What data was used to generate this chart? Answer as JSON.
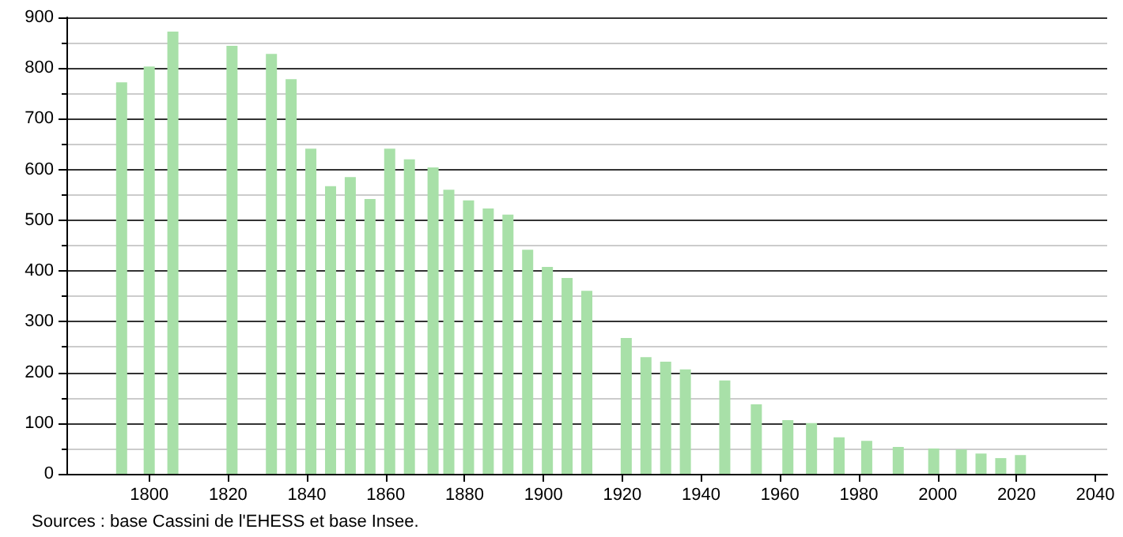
{
  "chart_data": {
    "type": "bar",
    "x": [
      1793,
      1800,
      1806,
      1821,
      1831,
      1836,
      1841,
      1846,
      1851,
      1856,
      1861,
      1866,
      1872,
      1876,
      1881,
      1886,
      1891,
      1896,
      1901,
      1906,
      1911,
      1921,
      1926,
      1931,
      1936,
      1946,
      1954,
      1962,
      1968,
      1975,
      1982,
      1990,
      1999,
      2006,
      2011,
      2016,
      2021
    ],
    "values": [
      772,
      803,
      872,
      844,
      828,
      778,
      641,
      567,
      585,
      542,
      641,
      620,
      604,
      560,
      539,
      523,
      511,
      442,
      408,
      386,
      361,
      268,
      230,
      221,
      206,
      184,
      137,
      106,
      100,
      72,
      65,
      53,
      50,
      48,
      40,
      31,
      37
    ],
    "color": "#a8e0a8",
    "xlim": [
      1779,
      2043
    ],
    "xticks": [
      1800,
      1820,
      1840,
      1860,
      1880,
      1900,
      1920,
      1940,
      1960,
      1980,
      2000,
      2020,
      2040
    ],
    "ylim": [
      0,
      900
    ],
    "yticks": [
      0,
      100,
      200,
      300,
      400,
      500,
      600,
      700,
      800,
      900
    ],
    "grid": "y",
    "annotations": [
      "Sources : base Cassini de l'EHESS et base Insee."
    ]
  }
}
